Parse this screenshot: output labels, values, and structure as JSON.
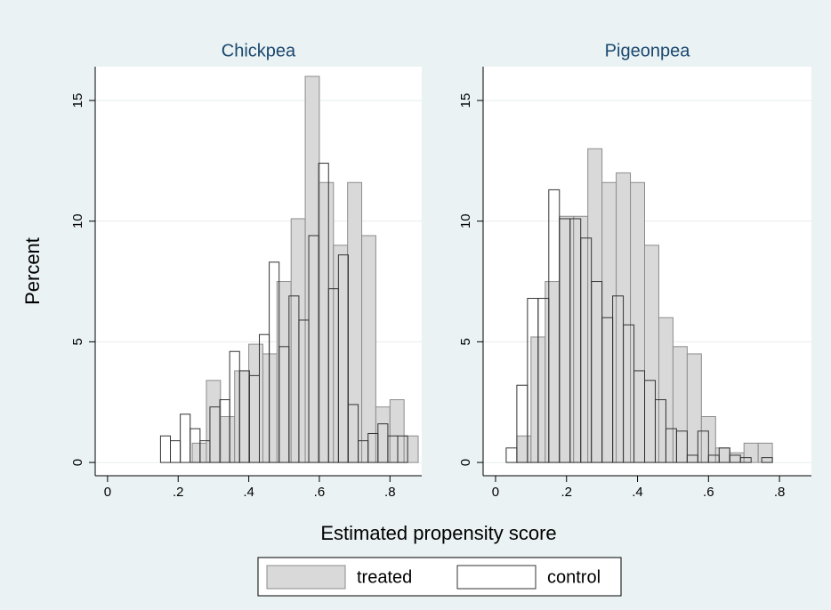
{
  "chart_data": [
    {
      "type": "histogram",
      "title": "Chickpea",
      "xlim": [
        -0.035,
        0.89
      ],
      "ylim": [
        -0.55,
        16.4
      ],
      "xticks": [
        0,
        {
          "value": 0.2,
          "label": ".2"
        },
        {
          "value": 0.4,
          "label": ".4"
        },
        {
          "value": 0.6,
          "label": ".6"
        },
        {
          "value": 0.8,
          "label": ".8"
        }
      ],
      "yticks": [
        0,
        5,
        10,
        15
      ],
      "grid": true,
      "series": [
        {
          "name": "treated",
          "color": "#d9d9d9",
          "edgecolor": "#8c8c8c",
          "bins": [
            0.24,
            0.28,
            0.32,
            0.36,
            0.4,
            0.44,
            0.48,
            0.52,
            0.56,
            0.6,
            0.64,
            0.68,
            0.72,
            0.76,
            0.8,
            0.84,
            0.88
          ],
          "values": [
            0.8,
            3.4,
            1.9,
            3.8,
            4.9,
            4.5,
            7.5,
            10.1,
            16,
            11.6,
            9,
            11.6,
            9.4,
            2.3,
            2.6,
            1.1
          ]
        },
        {
          "name": "control",
          "color": "#ffffff",
          "edgecolor": "#333333",
          "bins": [
            0.15,
            0.178,
            0.206,
            0.234,
            0.262,
            0.29,
            0.318,
            0.346,
            0.374,
            0.402,
            0.43,
            0.458,
            0.486,
            0.514,
            0.542,
            0.57,
            0.598,
            0.626,
            0.654,
            0.682,
            0.71,
            0.738,
            0.766,
            0.794,
            0.822,
            0.85
          ],
          "values": [
            1.1,
            0.9,
            2.0,
            1.4,
            0.9,
            2.3,
            2.6,
            4.6,
            3.8,
            3.6,
            5.3,
            8.3,
            4.8,
            6.9,
            5.9,
            9.4,
            12.4,
            7.2,
            8.6,
            2.4,
            0.9,
            1.2,
            1.6,
            1.1,
            1.1
          ]
        }
      ]
    },
    {
      "type": "histogram",
      "title": "Pigeonpea",
      "xlim": [
        -0.035,
        0.89
      ],
      "ylim": [
        -0.55,
        16.4
      ],
      "xticks": [
        0,
        {
          "value": 0.2,
          "label": ".2"
        },
        {
          "value": 0.4,
          "label": ".4"
        },
        {
          "value": 0.6,
          "label": ".6"
        },
        {
          "value": 0.8,
          "label": ".8"
        }
      ],
      "yticks": [
        0,
        5,
        10,
        15
      ],
      "grid": true,
      "series": [
        {
          "name": "treated",
          "color": "#d9d9d9",
          "edgecolor": "#8c8c8c",
          "bins": [
            0.06,
            0.1,
            0.14,
            0.18,
            0.22,
            0.26,
            0.3,
            0.34,
            0.38,
            0.42,
            0.46,
            0.5,
            0.54,
            0.58,
            0.62,
            0.66,
            0.7,
            0.74,
            0.78
          ],
          "values": [
            1.1,
            5.2,
            7.5,
            10.2,
            10.2,
            13,
            11.6,
            12,
            11.6,
            9,
            6,
            4.8,
            4.5,
            1.9,
            0.6,
            0.4,
            0.8,
            0.8
          ]
        },
        {
          "name": "control",
          "color": "#ffffff",
          "edgecolor": "#333333",
          "bins": [
            0.03,
            0.06,
            0.09,
            0.12,
            0.15,
            0.18,
            0.21,
            0.24,
            0.27,
            0.3,
            0.33,
            0.36,
            0.39,
            0.42,
            0.45,
            0.48,
            0.51,
            0.54,
            0.57,
            0.6,
            0.63,
            0.66,
            0.69,
            0.72,
            0.75,
            0.78
          ],
          "values": [
            0.6,
            3.2,
            6.8,
            6.8,
            11.3,
            10.1,
            10.1,
            9.3,
            7.5,
            6.0,
            6.9,
            5.7,
            3.8,
            3.4,
            2.6,
            1.4,
            1.3,
            0.3,
            1.3,
            0.3,
            0.6,
            0.3,
            0.2,
            0,
            0.2
          ]
        }
      ]
    }
  ],
  "ylabel": "Percent",
  "xlabel": "Estimated propensity score"
}
